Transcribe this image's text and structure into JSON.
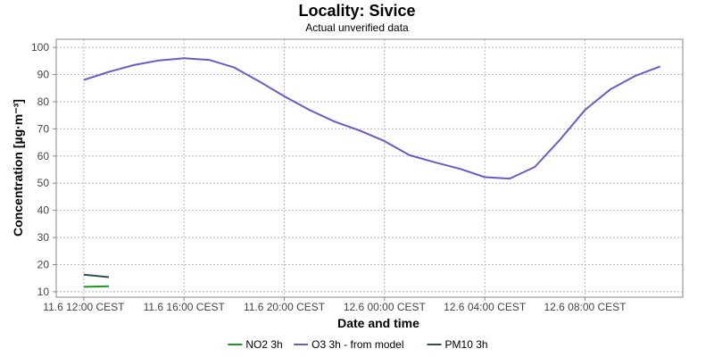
{
  "chart_data": {
    "type": "line",
    "title": "Locality: Sivice",
    "subtitle": "Actual unverified data",
    "xlabel": "Date and time",
    "ylabel": "Concentration [µg·m⁻³]",
    "ylim": [
      8,
      103
    ],
    "xlim": [
      -0.55,
      11.95
    ],
    "y_ticks": [
      10,
      20,
      30,
      40,
      50,
      60,
      70,
      80,
      90,
      100
    ],
    "x_ticks": [
      {
        "x": 0,
        "label": "11.6 12:00 CEST"
      },
      {
        "x": 2,
        "label": "11.6 16:00 CEST"
      },
      {
        "x": 4,
        "label": "11.6 20:00 CEST"
      },
      {
        "x": 6,
        "label": "12.6 00:00 CEST"
      },
      {
        "x": 8,
        "label": "12.6 04:00 CEST"
      },
      {
        "x": 10,
        "label": "12.6 08:00 CEST"
      }
    ],
    "x_unit": "hours after 11.6 12:00 CEST, divided by 2",
    "grid": true,
    "legend_position": "bottom",
    "series": [
      {
        "name": "NO2 3h",
        "color": "#1a9a1a",
        "x": [
          0,
          0.5
        ],
        "y": [
          11.8,
          12.0
        ]
      },
      {
        "name": "O3 3h - from model",
        "color": "#6a5acd",
        "x": [
          0,
          0.5,
          1,
          1.5,
          2,
          2.5,
          3,
          3.5,
          4,
          4.5,
          5,
          5.5,
          6,
          6.5,
          7,
          7.5,
          8,
          8.5,
          9,
          9.5,
          10,
          10.5,
          11,
          11.5
        ],
        "y": [
          88.0,
          91.0,
          93.5,
          95.2,
          96.0,
          95.4,
          92.6,
          87.5,
          82.0,
          77.0,
          72.7,
          69.4,
          65.5,
          60.3,
          57.7,
          55.3,
          52.2,
          51.7,
          56.0,
          66.0,
          77.0,
          84.5,
          89.5,
          93.0
        ]
      },
      {
        "name": "PM10 3h",
        "color": "#2f4f4f",
        "x": [
          0,
          0.5
        ],
        "y": [
          16.3,
          15.4
        ]
      }
    ]
  }
}
